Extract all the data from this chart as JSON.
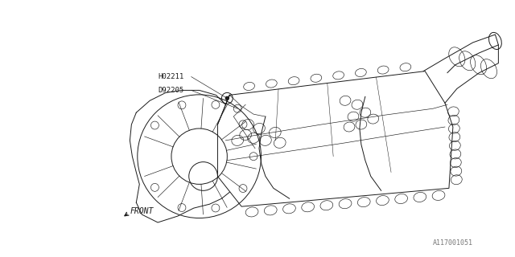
{
  "background_color": "#ffffff",
  "line_color": "#1a1a1a",
  "label1": "H02211",
  "label2": "D92205",
  "front_label": "FRONT",
  "part_num": "A117001051",
  "fig_width": 6.4,
  "fig_height": 3.2,
  "dpi": 100,
  "lw": 0.7,
  "lw_thin": 0.45,
  "lw_thick": 0.9
}
